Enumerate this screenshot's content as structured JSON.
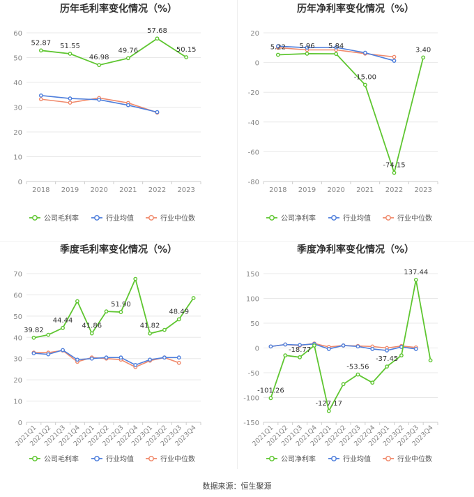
{
  "colors": {
    "company": "#5fc631",
    "industry_avg": "#4f7fdc",
    "industry_median": "#f08a6c",
    "grid": "#e8e8e8",
    "axis_text": "#888888",
    "label_text": "#333333"
  },
  "footer": {
    "text": "数据来源：恒生聚源"
  },
  "chart_data": [
    {
      "id": "annual-gross",
      "type": "line",
      "title": "历年毛利率变化情况（%）",
      "categories": [
        "2018",
        "2019",
        "2020",
        "2021",
        "2022",
        "2023"
      ],
      "ylim": [
        0,
        60
      ],
      "yticks": [
        0,
        10,
        20,
        30,
        40,
        50,
        60
      ],
      "rotate_x": false,
      "series": [
        {
          "name": "公司毛利率",
          "key": "company",
          "values": [
            52.87,
            51.55,
            46.98,
            49.76,
            57.68,
            50.15
          ]
        },
        {
          "name": "行业均值",
          "key": "industry_avg",
          "values": [
            34.7,
            33.5,
            33.0,
            30.8,
            28.0,
            null
          ]
        },
        {
          "name": "行业中位数",
          "key": "industry_median",
          "values": [
            33.2,
            31.8,
            33.7,
            31.7,
            27.8,
            null
          ]
        }
      ],
      "labels": [
        {
          "i": 0,
          "text": "52.87",
          "pos": "above"
        },
        {
          "i": 1,
          "text": "51.55",
          "pos": "above"
        },
        {
          "i": 2,
          "text": "46.98",
          "pos": "above"
        },
        {
          "i": 3,
          "text": "49.76",
          "pos": "above"
        },
        {
          "i": 4,
          "text": "57.68",
          "pos": "above"
        },
        {
          "i": 5,
          "text": "50.15",
          "pos": "above"
        }
      ]
    },
    {
      "id": "annual-net",
      "type": "line",
      "title": "历年净利率变化情况（%）",
      "categories": [
        "2018",
        "2019",
        "2020",
        "2021",
        "2022",
        "2023"
      ],
      "ylim": [
        -80,
        20
      ],
      "yticks": [
        -80,
        -60,
        -40,
        -20,
        0,
        20
      ],
      "rotate_x": false,
      "series": [
        {
          "name": "公司净利率",
          "key": "company",
          "values": [
            5.22,
            5.96,
            5.84,
            -15.0,
            -74.15,
            3.4
          ]
        },
        {
          "name": "行业均值",
          "key": "industry_avg",
          "values": [
            11.0,
            10.0,
            10.2,
            6.6,
            1.2,
            null
          ]
        },
        {
          "name": "行业中位数",
          "key": "industry_median",
          "values": [
            10.0,
            8.5,
            8.5,
            6.0,
            3.8,
            null
          ]
        }
      ],
      "labels": [
        {
          "i": 0,
          "text": "5.22",
          "pos": "above"
        },
        {
          "i": 1,
          "text": "5.96",
          "pos": "above"
        },
        {
          "i": 2,
          "text": "5.84",
          "pos": "above"
        },
        {
          "i": 3,
          "text": "-15.00",
          "pos": "above"
        },
        {
          "i": 4,
          "text": "-74.15",
          "pos": "above"
        },
        {
          "i": 5,
          "text": "3.40",
          "pos": "above"
        }
      ]
    },
    {
      "id": "quarterly-gross",
      "type": "line",
      "title": "季度毛利率变化情况（%）",
      "categories": [
        "2021Q1",
        "2021Q2",
        "2021Q3",
        "2021Q4",
        "2022Q1",
        "2022Q2",
        "2022Q3",
        "2022Q4",
        "2023Q1",
        "2023Q2",
        "2023Q3",
        "2023Q4"
      ],
      "ylim": [
        0,
        70
      ],
      "yticks": [
        0,
        10,
        20,
        30,
        40,
        50,
        60,
        70
      ],
      "rotate_x": true,
      "series": [
        {
          "name": "公司毛利率",
          "key": "company",
          "values": [
            39.82,
            41.2,
            44.44,
            57.0,
            41.86,
            52.2,
            51.9,
            67.5,
            41.82,
            43.5,
            48.49,
            58.5
          ]
        },
        {
          "name": "行业均值",
          "key": "industry_avg",
          "values": [
            32.5,
            32.0,
            34.0,
            29.5,
            30.0,
            30.5,
            30.5,
            27.0,
            29.5,
            30.5,
            30.5,
            null
          ]
        },
        {
          "name": "行业中位数",
          "key": "industry_median",
          "values": [
            32.8,
            32.8,
            33.8,
            28.5,
            30.5,
            30.0,
            29.5,
            26.0,
            29.0,
            30.5,
            28.0,
            null
          ]
        }
      ],
      "labels": [
        {
          "i": 0,
          "text": "39.82",
          "pos": "above"
        },
        {
          "i": 2,
          "text": "44.44",
          "pos": "above"
        },
        {
          "i": 4,
          "text": "41.86",
          "pos": "above"
        },
        {
          "i": 6,
          "text": "51.90",
          "pos": "above"
        },
        {
          "i": 8,
          "text": "41.82",
          "pos": "above"
        },
        {
          "i": 10,
          "text": "48.49",
          "pos": "above"
        }
      ]
    },
    {
      "id": "quarterly-net",
      "type": "line",
      "title": "季度净利率变化情况（%）",
      "categories": [
        "2021Q1",
        "2021Q2",
        "2021Q3",
        "2021Q4",
        "2022Q1",
        "2022Q2",
        "2022Q3",
        "2022Q4",
        "2023Q1",
        "2023Q2",
        "2023Q3",
        "2023Q4"
      ],
      "ylim": [
        -150,
        150
      ],
      "yticks": [
        -150,
        -100,
        -50,
        0,
        50,
        100,
        150
      ],
      "rotate_x": true,
      "series": [
        {
          "name": "公司净利率",
          "key": "company",
          "values": [
            -101.26,
            -15.0,
            -18.77,
            5.0,
            -127.17,
            -73.0,
            -53.56,
            -70.0,
            -37.45,
            -15.0,
            137.44,
            -25.0
          ]
        },
        {
          "name": "行业均值",
          "key": "industry_avg",
          "values": [
            3.0,
            7.0,
            6.0,
            8.0,
            -2.0,
            5.0,
            3.0,
            -2.0,
            -5.0,
            2.0,
            -2.0,
            null
          ]
        },
        {
          "name": "行业中位数",
          "key": "industry_median",
          "values": [
            3.0,
            7.0,
            5.0,
            9.0,
            2.0,
            5.0,
            4.0,
            3.0,
            0.0,
            4.0,
            1.0,
            null
          ]
        }
      ],
      "labels": [
        {
          "i": 0,
          "text": "-101.26",
          "pos": "above"
        },
        {
          "i": 2,
          "text": "-18.77",
          "pos": "above"
        },
        {
          "i": 4,
          "text": "-127.17",
          "pos": "above"
        },
        {
          "i": 6,
          "text": "-53.56",
          "pos": "above"
        },
        {
          "i": 8,
          "text": "-37.45",
          "pos": "above"
        },
        {
          "i": 10,
          "text": "137.44",
          "pos": "above"
        }
      ]
    }
  ]
}
